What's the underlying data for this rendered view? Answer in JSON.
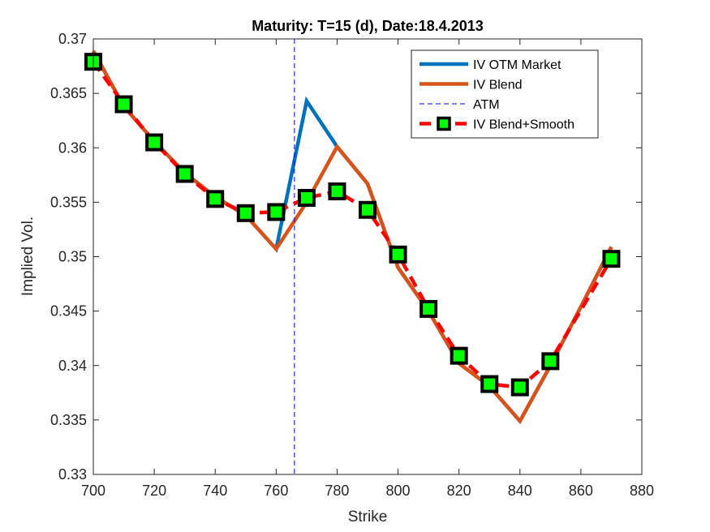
{
  "chart_data": {
    "type": "line",
    "title": "Maturity: T=15 (d), Date:18.4.2013",
    "xlabel": "Strike",
    "ylabel": "Implied Vol.",
    "xlim": [
      700,
      880
    ],
    "ylim": [
      0.33,
      0.37
    ],
    "xticks": [
      700,
      720,
      740,
      760,
      780,
      800,
      820,
      840,
      860,
      880
    ],
    "xtick_labels": [
      "700",
      "720",
      "740",
      "760",
      "780",
      "800",
      "820",
      "840",
      "860",
      "880"
    ],
    "yticks": [
      0.33,
      0.335,
      0.34,
      0.345,
      0.35,
      0.355,
      0.36,
      0.365,
      0.37
    ],
    "ytick_labels": [
      "0.33",
      "0.335",
      "0.34",
      "0.345",
      "0.35",
      "0.355",
      "0.36",
      "0.365",
      "0.37"
    ],
    "grid": false,
    "legend_position": "top-right",
    "series": [
      {
        "name": "IV OTM Market",
        "color": "#0072BD",
        "style": "solid",
        "x": [
          700,
          710,
          720,
          730,
          740,
          750,
          760,
          770,
          780,
          790,
          800,
          810,
          820,
          830,
          840,
          850,
          860,
          870
        ],
        "y": [
          0.3689,
          0.3638,
          0.3606,
          0.3577,
          0.3555,
          0.3538,
          0.3507,
          0.3643,
          0.3601,
          0.3567,
          0.349,
          0.345,
          0.3402,
          0.3381,
          0.3349,
          0.34,
          0.3454,
          0.3509
        ]
      },
      {
        "name": "IV Blend",
        "color": "#D95319",
        "style": "solid",
        "x": [
          700,
          710,
          720,
          730,
          740,
          750,
          760,
          770,
          780,
          790,
          800,
          810,
          820,
          830,
          840,
          850,
          860,
          870
        ],
        "y": [
          0.3689,
          0.3638,
          0.3606,
          0.3577,
          0.3555,
          0.3538,
          0.3507,
          0.355,
          0.3601,
          0.3567,
          0.349,
          0.345,
          0.3402,
          0.3381,
          0.3349,
          0.34,
          0.3454,
          0.3509
        ]
      },
      {
        "name": "ATM",
        "color": "#0000FF",
        "style": "dashed-vertical",
        "x_value": 766
      },
      {
        "name": "IV Blend+Smooth",
        "color": "#FF0000",
        "marker_fill": "#00FF00",
        "marker_edge": "#000000",
        "style": "dashed-markers",
        "x": [
          700,
          710,
          720,
          730,
          740,
          750,
          760,
          770,
          780,
          790,
          800,
          810,
          820,
          830,
          840,
          850,
          870
        ],
        "y": [
          0.3679,
          0.364,
          0.3605,
          0.3576,
          0.3553,
          0.354,
          0.3541,
          0.3554,
          0.356,
          0.3543,
          0.3502,
          0.3452,
          0.3409,
          0.3383,
          0.338,
          0.3404,
          0.3498
        ]
      }
    ]
  }
}
